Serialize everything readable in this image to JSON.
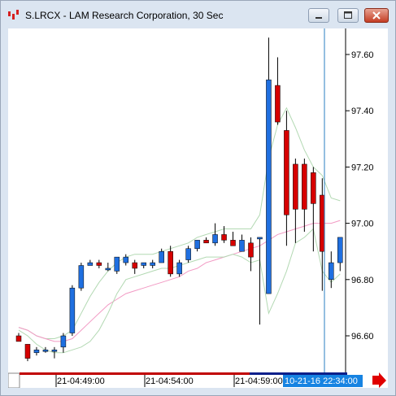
{
  "window": {
    "title": "S.LRCX - LAM Research Corporation, 30 Sec"
  },
  "chart_data": {
    "type": "candlestick",
    "yaxis": {
      "ticks": [
        96.6,
        96.8,
        97.0,
        97.2,
        97.4,
        97.6
      ],
      "ylim": [
        96.5,
        97.7
      ]
    },
    "xaxis": {
      "tick_labels": [
        "21-04:49:00",
        "21-04:54:00",
        "21-04:59:00"
      ],
      "cursor_label": "10-21-16 22:34:00"
    },
    "candles": [
      {
        "o": 96.6,
        "h": 96.61,
        "l": 96.58,
        "c": 96.58
      },
      {
        "o": 96.57,
        "h": 96.57,
        "l": 96.51,
        "c": 96.52
      },
      {
        "o": 96.54,
        "h": 96.56,
        "l": 96.53,
        "c": 96.55
      },
      {
        "o": 96.55,
        "h": 96.56,
        "l": 96.54,
        "c": 96.55
      },
      {
        "o": 96.55,
        "h": 96.56,
        "l": 96.52,
        "c": 96.55
      },
      {
        "o": 96.56,
        "h": 96.61,
        "l": 96.54,
        "c": 96.6
      },
      {
        "o": 96.61,
        "h": 96.78,
        "l": 96.6,
        "c": 96.77
      },
      {
        "o": 96.77,
        "h": 96.86,
        "l": 96.76,
        "c": 96.85
      },
      {
        "o": 96.85,
        "h": 96.87,
        "l": 96.85,
        "c": 96.86
      },
      {
        "o": 96.86,
        "h": 96.87,
        "l": 96.84,
        "c": 96.85
      },
      {
        "o": 96.84,
        "h": 96.86,
        "l": 96.83,
        "c": 96.84
      },
      {
        "o": 96.83,
        "h": 96.88,
        "l": 96.82,
        "c": 96.88
      },
      {
        "o": 96.86,
        "h": 96.89,
        "l": 96.85,
        "c": 96.88
      },
      {
        "o": 96.86,
        "h": 96.87,
        "l": 96.82,
        "c": 96.84
      },
      {
        "o": 96.85,
        "h": 96.86,
        "l": 96.84,
        "c": 96.86
      },
      {
        "o": 96.85,
        "h": 96.87,
        "l": 96.84,
        "c": 96.86
      },
      {
        "o": 96.86,
        "h": 96.91,
        "l": 96.86,
        "c": 96.9
      },
      {
        "o": 96.9,
        "h": 96.92,
        "l": 96.81,
        "c": 96.82
      },
      {
        "o": 96.82,
        "h": 96.87,
        "l": 96.81,
        "c": 96.86
      },
      {
        "o": 96.87,
        "h": 96.92,
        "l": 96.86,
        "c": 96.91
      },
      {
        "o": 96.91,
        "h": 96.94,
        "l": 96.9,
        "c": 96.94
      },
      {
        "o": 96.94,
        "h": 96.95,
        "l": 96.93,
        "c": 96.93
      },
      {
        "o": 96.93,
        "h": 97.0,
        "l": 96.92,
        "c": 96.96
      },
      {
        "o": 96.96,
        "h": 96.99,
        "l": 96.93,
        "c": 96.94
      },
      {
        "o": 96.94,
        "h": 96.97,
        "l": 96.92,
        "c": 96.92
      },
      {
        "o": 96.9,
        "h": 96.96,
        "l": 96.9,
        "c": 96.94
      },
      {
        "o": 96.93,
        "h": 96.95,
        "l": 96.83,
        "c": 96.88
      },
      {
        "o": 96.95,
        "h": 96.95,
        "l": 96.64,
        "c": 96.95
      },
      {
        "o": 96.75,
        "h": 97.66,
        "l": 96.75,
        "c": 97.51
      },
      {
        "o": 97.49,
        "h": 97.59,
        "l": 97.35,
        "c": 97.36
      },
      {
        "o": 97.33,
        "h": 97.4,
        "l": 96.92,
        "c": 97.03
      },
      {
        "o": 97.21,
        "h": 97.23,
        "l": 96.93,
        "c": 97.05
      },
      {
        "o": 97.21,
        "h": 97.23,
        "l": 96.97,
        "c": 97.05
      },
      {
        "o": 97.18,
        "h": 97.2,
        "l": 96.9,
        "c": 97.07
      },
      {
        "o": 97.1,
        "h": 97.16,
        "l": 96.76,
        "c": 96.9
      },
      {
        "o": 96.8,
        "h": 96.9,
        "l": 96.77,
        "c": 96.86
      },
      {
        "o": 96.86,
        "h": 96.95,
        "l": 96.83,
        "c": 96.95
      }
    ],
    "bollinger_upper": [
      96.63,
      96.62,
      96.6,
      96.59,
      96.59,
      96.6,
      96.62,
      96.68,
      96.74,
      96.79,
      96.83,
      96.86,
      96.88,
      96.89,
      96.89,
      96.89,
      96.9,
      96.91,
      96.92,
      96.93,
      96.95,
      96.96,
      96.97,
      96.98,
      96.98,
      96.98,
      96.98,
      97.03,
      97.23,
      97.35,
      97.41,
      97.34,
      97.26,
      97.2,
      97.17,
      97.09,
      97.08
    ],
    "moving_average": [
      96.63,
      96.62,
      96.6,
      96.59,
      96.58,
      96.58,
      96.59,
      96.62,
      96.65,
      96.68,
      96.71,
      96.73,
      96.75,
      96.76,
      96.77,
      96.78,
      96.79,
      96.8,
      96.81,
      96.83,
      96.84,
      96.86,
      96.87,
      96.88,
      96.89,
      96.9,
      96.91,
      96.92,
      96.94,
      96.96,
      96.97,
      96.98,
      96.99,
      97.0,
      97.0,
      97.0,
      97.01
    ],
    "bollinger_lower": [
      96.62,
      96.6,
      96.57,
      96.55,
      96.54,
      96.54,
      96.55,
      96.56,
      96.58,
      96.62,
      96.68,
      96.75,
      96.8,
      96.81,
      96.82,
      96.83,
      96.84,
      96.84,
      96.85,
      96.86,
      96.87,
      96.88,
      96.88,
      96.88,
      96.89,
      96.88,
      96.86,
      96.87,
      96.68,
      96.75,
      96.83,
      96.93,
      96.95,
      96.98,
      96.83,
      96.79,
      96.82
    ],
    "colors": {
      "up": "#1f6fe0",
      "down": "#d60000",
      "wick": "#000000",
      "bollinger": "#b3d9b3",
      "moving_average": "#f29ac4",
      "cursor": "#2a7fc0",
      "cursor_label_bg": "#1683e2",
      "scroll_arrow": "#e00000"
    }
  }
}
